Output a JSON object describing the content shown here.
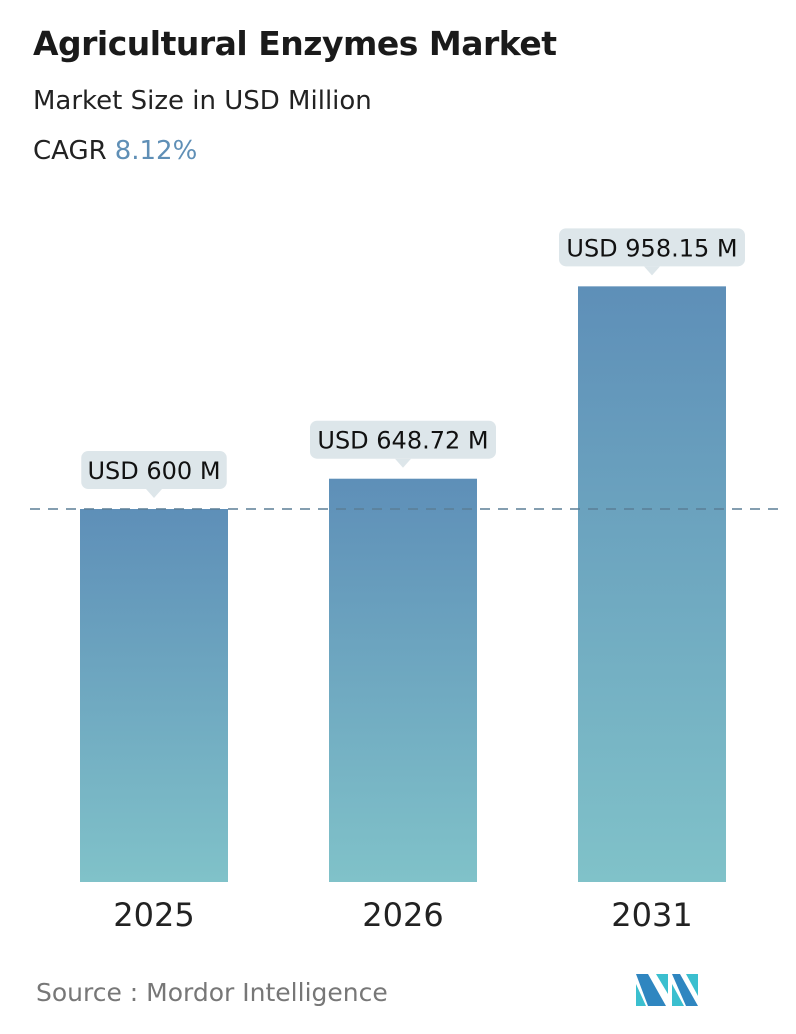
{
  "title": "Agricultural Enzymes Market",
  "subtitle": "Market Size in USD Million",
  "cagr_label": "CAGR",
  "cagr_value": "8.12%",
  "source": "Source :  Mordor Intelligence",
  "logo_text": "Mordor Intelligence",
  "colors": {
    "bar_top": "#5e8fb8",
    "bar_bottom": "#80c2c9",
    "label_bg": "#dde6ea",
    "accent": "#5f8fb6"
  },
  "chart_data": {
    "type": "bar",
    "categories": [
      "2025",
      "2026",
      "2031"
    ],
    "values": [
      600,
      648.72,
      958.15
    ],
    "data_labels": [
      "USD 600 M",
      "USD 648.72 M",
      "USD 958.15 M"
    ],
    "reference_line": 600,
    "ylim": [
      0,
      958.15
    ],
    "grid": false
  }
}
